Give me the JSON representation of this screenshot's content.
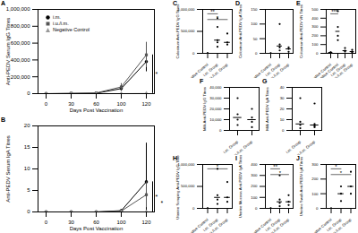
{
  "chart_data": [
    {
      "type": "line",
      "title": "A",
      "x_label": "Days Post Vaccination",
      "y_label": "Anti-PEDV Serum IgG Titres",
      "categories": [
        "0",
        "30",
        "60",
        "100",
        "120"
      ],
      "ylim": [
        0,
        1000000
      ],
      "yticks": [
        0,
        {
          "value": 200000,
          "label": "200,000"
        },
        {
          "value": 400000,
          "label": "400,000"
        },
        {
          "value": 600000,
          "label": "600,000"
        },
        {
          "value": 800000,
          "label": "800,000"
        },
        {
          "value": 1000000,
          "label": "1,000,000"
        }
      ],
      "series": [
        {
          "name": "i.m.",
          "color": "#000000",
          "marker": "circle",
          "values": [
            0,
            2000,
            5000,
            60000,
            380000
          ],
          "errors": [
            0,
            1000,
            3000,
            30000,
            120000
          ]
        },
        {
          "name": "i.u./i.m.",
          "color": "#555555",
          "marker": "square",
          "values": [
            0,
            3000,
            8000,
            80000,
            460000
          ],
          "errors": [
            0,
            1500,
            4000,
            40000,
            150000
          ]
        },
        {
          "name": "Negative Control",
          "color": "#999999",
          "marker": "triangle",
          "values": [
            0,
            0,
            0,
            0,
            2000
          ],
          "errors": [
            0,
            0,
            0,
            0,
            0
          ]
        }
      ],
      "annotations": [
        {
          "text": "*",
          "between": [
            "i.u./i.m.",
            "Negative Control"
          ]
        }
      ],
      "legend": "left"
    },
    {
      "type": "line",
      "title": "B",
      "x_label": "Days Post Vaccination",
      "y_label": "Anti-PEDV Serum IgA Titres",
      "categories": [
        "0",
        "30",
        "60",
        "100",
        "120"
      ],
      "ylim": [
        0,
        20
      ],
      "yticks": [
        0,
        5,
        10,
        15,
        20
      ],
      "series": [
        {
          "name": "i.m.",
          "color": "#000000",
          "marker": "circle",
          "values": [
            0,
            0,
            0,
            0.3,
            7
          ],
          "errors": [
            0,
            0,
            0,
            0.2,
            9
          ]
        },
        {
          "name": "i.u./i.m.",
          "color": "#555555",
          "marker": "square",
          "values": [
            0,
            0,
            0,
            0.2,
            4
          ],
          "errors": [
            0,
            0,
            0,
            0.1,
            3
          ]
        },
        {
          "name": "Negative Control",
          "color": "#999999",
          "marker": "triangle",
          "values": [
            0,
            0,
            0,
            0,
            0
          ],
          "errors": [
            0,
            0,
            0,
            0,
            0
          ]
        }
      ],
      "annotations": [
        {
          "text": "*",
          "between": [
            "i.m.",
            "Negative Control"
          ]
        },
        {
          "text": "*",
          "between": [
            "i.u./i.m.",
            "Negative Control"
          ]
        }
      ]
    },
    {
      "type": "scatter",
      "title": "C",
      "y_label": "Colostrum Anti-PEDV IgG Titres",
      "categories": [
        "Negative Control",
        "i.m. Group",
        "i.u./i.m. Group"
      ],
      "ylim": [
        0,
        1000000
      ],
      "yticks": [
        0,
        {
          "value": 500000,
          "label": "500,000"
        },
        {
          "value": 1000000,
          "label": "1,000,000"
        }
      ],
      "values": [
        [
          0,
          0,
          0,
          0
        ],
        [
          150000,
          250000,
          300000,
          600000,
          800000
        ],
        [
          200000,
          250000,
          450000
        ]
      ],
      "medians": [
        0,
        300000,
        250000
      ],
      "annotations": [
        {
          "text": "**",
          "between": [
            "Negative Control",
            "i.m. Group"
          ]
        },
        {
          "text": "*",
          "between": [
            "Negative Control",
            "i.u./i.m. Group"
          ]
        }
      ]
    },
    {
      "type": "scatter",
      "title": "D",
      "y_label": "Colostrum Anti-PEDV IgA Titres",
      "categories": [
        "Negative Control",
        "i.m. Group",
        "i.u./i.m. Group"
      ],
      "ylim": [
        0,
        150
      ],
      "yticks": [
        0,
        50,
        100,
        150
      ],
      "values": [
        [
          0,
          0,
          0
        ],
        [
          10,
          20,
          30,
          100
        ],
        [
          5,
          15,
          20
        ]
      ],
      "medians": [
        0,
        25,
        15
      ],
      "annotations": []
    },
    {
      "type": "scatter",
      "title": "E",
      "y_label": "Colostrum Anti-PEDV VN Titres",
      "categories": [
        "Negative Control",
        "Positive Control",
        "i.m. Group",
        "i.u./i.m. Group"
      ],
      "ylim": [
        0,
        500
      ],
      "yticks": [
        0,
        100,
        200,
        300,
        400,
        500
      ],
      "values": [
        [
          10,
          10,
          10
        ],
        [
          150,
          200,
          300,
          480
        ],
        [
          20,
          30,
          60
        ],
        [
          10,
          20,
          40
        ]
      ],
      "medians": [
        10,
        250,
        30,
        20
      ],
      "annotations": [
        {
          "text": "***",
          "between": [
            "Negative Control",
            "Positive Control"
          ]
        }
      ]
    },
    {
      "type": "scatter",
      "title": "F",
      "y_label": "Milk Anti-PEDV IgG Titres",
      "categories": [
        "i.m. Group",
        "i.u./i.m. Group"
      ],
      "ylim": [
        0,
        40000
      ],
      "yticks": [
        0,
        {
          "value": 10000,
          "label": "10,000"
        },
        {
          "value": 20000,
          "label": "20,000"
        },
        {
          "value": 30000,
          "label": "30,000"
        },
        {
          "value": 40000,
          "label": "40,000"
        }
      ],
      "values": [
        [
          5000,
          10000,
          15000,
          30000
        ],
        [
          3000,
          8000,
          12000,
          20000
        ]
      ],
      "medians": [
        12000,
        10000
      ],
      "annotations": []
    },
    {
      "type": "scatter",
      "title": "G",
      "y_label": "Milk Anti-PEDV IgA Titres",
      "categories": [
        "i.m. Group",
        "i.u./i.m. Group"
      ],
      "ylim": [
        0,
        40
      ],
      "yticks": [
        0,
        10,
        20,
        30,
        40
      ],
      "values": [
        [
          2,
          5,
          8,
          30
        ],
        [
          3,
          4,
          6,
          25
        ]
      ],
      "medians": [
        6,
        5
      ],
      "annotations": []
    },
    {
      "type": "scatter",
      "title": "H",
      "y_label": "Uterine Scraping Anti-PEDV IgG Titres",
      "categories": [
        "Negative Control",
        "i.m. Group",
        "i.u./i.m. Group"
      ],
      "ylim": [
        0,
        1000000
      ],
      "yticks": [
        0,
        {
          "value": 500000,
          "label": "500,000"
        },
        {
          "value": 1000000,
          "label": "1,000,000"
        }
      ],
      "values": [
        [
          0,
          0,
          0
        ],
        [
          100000,
          200000,
          300000,
          900000
        ],
        [
          150000,
          250000,
          600000
        ]
      ],
      "medians": [
        0,
        250000,
        250000
      ],
      "annotations": [
        {
          "text": "*",
          "between": [
            "Negative Control",
            "i.u./i.m. Group"
          ]
        }
      ]
    },
    {
      "type": "scatter",
      "title": "I",
      "y_label": "Uterine Mucosa Anti-PEDV IgA Titres",
      "categories": [
        "Negative Control",
        "i.m. Group",
        "i.u./i.m. Group"
      ],
      "ylim": [
        0,
        400
      ],
      "yticks": [
        0,
        100,
        200,
        300,
        400
      ],
      "values": [
        [
          0,
          0,
          0
        ],
        [
          20,
          50,
          80,
          300
        ],
        [
          30,
          60,
          120
        ]
      ],
      "medians": [
        0,
        60,
        60
      ],
      "annotations": [
        {
          "text": "**",
          "between": [
            "Negative Control",
            "i.m. Group"
          ]
        },
        {
          "text": "*",
          "between": [
            "Negative Control",
            "i.u./i.m. Group"
          ]
        }
      ]
    },
    {
      "type": "scatter",
      "title": "J",
      "y_label": "Uterine Swab Anti-PEDV IgA Titres",
      "categories": [
        "Negative Control",
        "i.m. Group",
        "i.u./i.m. Group"
      ],
      "ylim": [
        0,
        300
      ],
      "yticks": [
        0,
        100,
        200,
        300
      ],
      "values": [
        [
          0,
          0
        ],
        [
          50,
          100,
          150
        ],
        [
          100,
          150,
          250
        ]
      ],
      "medians": [
        0,
        100,
        150
      ],
      "annotations": [
        {
          "text": "*",
          "between": [
            "Negative Control",
            "i.m. Group"
          ]
        },
        {
          "text": "*",
          "between": [
            "Negative Control",
            "i.u./i.m. Group"
          ]
        }
      ]
    }
  ]
}
